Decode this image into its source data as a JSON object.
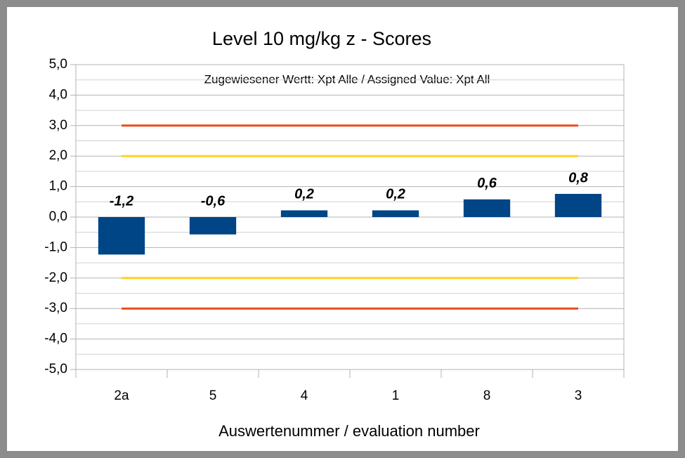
{
  "chart_data": {
    "type": "bar",
    "title": "Level 10 mg/kg  z - Scores",
    "annotation": "Zugewiesener Wertt: Xpt Alle / Assigned Value: Xpt All",
    "x_label": "Auswertenummer / evaluation number",
    "categories": [
      "2a",
      "5",
      "4",
      "1",
      "8",
      "3"
    ],
    "values": [
      -1.23,
      -0.57,
      0.22,
      0.22,
      0.58,
      0.76
    ],
    "value_labels": [
      "-1,2",
      "-0,6",
      "0,2",
      "0,2",
      "0,6",
      "0,8"
    ],
    "color": "#004586",
    "ylim": [
      -5,
      5
    ],
    "yticks": [
      {
        "value": -5,
        "label": "-5,0"
      },
      {
        "value": -4,
        "label": "-4,0"
      },
      {
        "value": -3,
        "label": "-3,0"
      },
      {
        "value": -2,
        "label": "-2,0"
      },
      {
        "value": -1,
        "label": "-1,0"
      },
      {
        "value": 0,
        "label": "0,0"
      },
      {
        "value": 1,
        "label": "1,0"
      },
      {
        "value": 2,
        "label": "2,0"
      },
      {
        "value": 3,
        "label": "3,0"
      },
      {
        "value": 4,
        "label": "4,0"
      },
      {
        "value": 5,
        "label": "5,0"
      }
    ],
    "minor_yticks": [
      -4.5,
      -3.5,
      -2.5,
      -1.5,
      -0.5,
      0.5,
      1.5,
      2.5,
      3.5,
      4.5
    ],
    "grid": true,
    "reference_lines": [
      {
        "value": 3,
        "color": "#ee4b1c"
      },
      {
        "value": 2,
        "color": "#ffd320"
      },
      {
        "value": -2,
        "color": "#ffd320"
      },
      {
        "value": -3,
        "color": "#ee4b1c"
      }
    ]
  }
}
